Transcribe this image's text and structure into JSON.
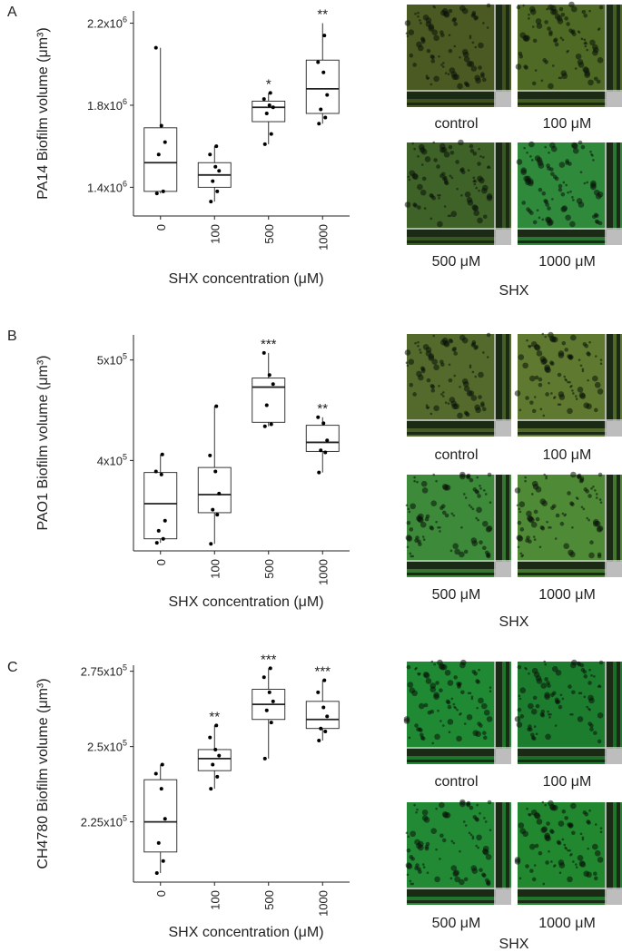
{
  "panels": [
    {
      "letter": "A",
      "ylabel": "PA14 Biofilm volume (μm³)",
      "xlabel": "SHX concentration (μM)",
      "micrograph_labels": [
        "control",
        "100 μM",
        "500 μM",
        "1000 μM"
      ],
      "shx_label": "SHX",
      "micrograph_colors": [
        "#4a5a22",
        "#4f6a25",
        "#3f6228",
        "#2f8a3c"
      ]
    },
    {
      "letter": "B",
      "ylabel": "PAO1 Biofilm volume (μm³)",
      "xlabel": "SHX concentration (μM)",
      "micrograph_labels": [
        "control",
        "100 μM",
        "500 μM",
        "1000 μM"
      ],
      "shx_label": "SHX",
      "micrograph_colors": [
        "#536a2c",
        "#5f7a30",
        "#3d8a3a",
        "#4f8a36"
      ]
    },
    {
      "letter": "C",
      "ylabel": "CH4780 Biofilm volume (μm³)",
      "xlabel": "SHX concentration (μM)",
      "micrograph_labels": [
        "control",
        "100 μM",
        "500 μM",
        "1000 μM"
      ],
      "shx_label": "SHX",
      "micrograph_colors": [
        "#1f8a33",
        "#1d7d2f",
        "#228a35",
        "#21882f"
      ]
    }
  ],
  "chart_data": [
    {
      "type": "box",
      "panel": "A",
      "ylabel": "PA14 Biofilm volume (μm³)",
      "xlabel": "SHX concentration (μM)",
      "categories": [
        "0",
        "100",
        "500",
        "1000"
      ],
      "yticks": [
        1400000,
        1800000,
        2200000
      ],
      "ytick_labels": [
        {
          "base": "1.4x10",
          "exp": "6"
        },
        {
          "base": "1.8x10",
          "exp": "6"
        },
        {
          "base": "2.2x10",
          "exp": "6"
        }
      ],
      "ylim": [
        1260000,
        2260000
      ],
      "boxes": [
        {
          "whisker_low": 1370000,
          "q1": 1380000,
          "median": 1520000,
          "q3": 1690000,
          "whisker_high": 2080000
        },
        {
          "whisker_low": 1330000,
          "q1": 1400000,
          "median": 1460000,
          "q3": 1520000,
          "whisker_high": 1600000
        },
        {
          "whisker_low": 1610000,
          "q1": 1720000,
          "median": 1790000,
          "q3": 1820000,
          "whisker_high": 1860000
        },
        {
          "whisker_low": 1710000,
          "q1": 1760000,
          "median": 1880000,
          "q3": 2020000,
          "whisker_high": 2200000
        }
      ],
      "points": [
        [
          1370000,
          1380000,
          1560000,
          1620000,
          1700000,
          2080000
        ],
        [
          1330000,
          1380000,
          1430000,
          1480000,
          1500000,
          1560000,
          1600000
        ],
        [
          1610000,
          1660000,
          1760000,
          1790000,
          1800000,
          1830000,
          1860000
        ],
        [
          1710000,
          1740000,
          1780000,
          1850000,
          1960000,
          2010000,
          2140000
        ]
      ],
      "significance": [
        "",
        "",
        "*",
        "**"
      ]
    },
    {
      "type": "box",
      "panel": "B",
      "ylabel": "PAO1 Biofilm volume (μm³)",
      "xlabel": "SHX concentration (μM)",
      "categories": [
        "0",
        "100",
        "500",
        "1000"
      ],
      "yticks": [
        400000,
        500000
      ],
      "ytick_labels": [
        {
          "base": "4x10",
          "exp": "5"
        },
        {
          "base": "5x10",
          "exp": "5"
        }
      ],
      "ylim": [
        310000,
        525000
      ],
      "boxes": [
        {
          "whisker_low": 318000,
          "q1": 322000,
          "median": 357000,
          "q3": 388000,
          "whisker_high": 406000
        },
        {
          "whisker_low": 317000,
          "q1": 348000,
          "median": 366000,
          "q3": 393000,
          "whisker_high": 454000
        },
        {
          "whisker_low": 434000,
          "q1": 438000,
          "median": 473000,
          "q3": 482000,
          "whisker_high": 507000
        },
        {
          "whisker_low": 388000,
          "q1": 409000,
          "median": 418000,
          "q3": 435000,
          "whisker_high": 443000
        }
      ],
      "points": [
        [
          318000,
          322000,
          330000,
          340000,
          386000,
          389000,
          406000
        ],
        [
          317000,
          346000,
          351000,
          367000,
          389000,
          405000,
          454000
        ],
        [
          434000,
          436000,
          455000,
          476000,
          485000,
          507000
        ],
        [
          388000,
          408000,
          410000,
          420000,
          437000,
          443000
        ]
      ],
      "significance": [
        "",
        "",
        "***",
        "**"
      ]
    },
    {
      "type": "box",
      "panel": "C",
      "ylabel": "CH4780 Biofilm volume (μm³)",
      "xlabel": "SHX concentration (μM)",
      "categories": [
        "0",
        "100",
        "500",
        "1000"
      ],
      "yticks": [
        225000,
        250000,
        275000
      ],
      "ytick_labels": [
        {
          "base": "2.25x10",
          "exp": "5"
        },
        {
          "base": "2.5x10",
          "exp": "5"
        },
        {
          "base": "2.75x10",
          "exp": "5"
        }
      ],
      "ylim": [
        205000,
        277000
      ],
      "boxes": [
        {
          "whisker_low": 208000,
          "q1": 215000,
          "median": 225000,
          "q3": 239000,
          "whisker_high": 244000
        },
        {
          "whisker_low": 236000,
          "q1": 242000,
          "median": 246000,
          "q3": 249000,
          "whisker_high": 257000
        },
        {
          "whisker_low": 246000,
          "q1": 259000,
          "median": 264000,
          "q3": 269000,
          "whisker_high": 276000
        },
        {
          "whisker_low": 252000,
          "q1": 256000,
          "median": 259000,
          "q3": 265000,
          "whisker_high": 272000
        }
      ],
      "points": [
        [
          208000,
          212000,
          218000,
          226000,
          236000,
          241000,
          244000
        ],
        [
          236000,
          240000,
          244000,
          247000,
          249000,
          253000,
          257000
        ],
        [
          246000,
          258000,
          262000,
          265000,
          268000,
          273000,
          276000
        ],
        [
          252000,
          255000,
          256000,
          260000,
          263000,
          268000,
          272000
        ]
      ],
      "significance": [
        "",
        "**",
        "***",
        "***"
      ]
    }
  ]
}
